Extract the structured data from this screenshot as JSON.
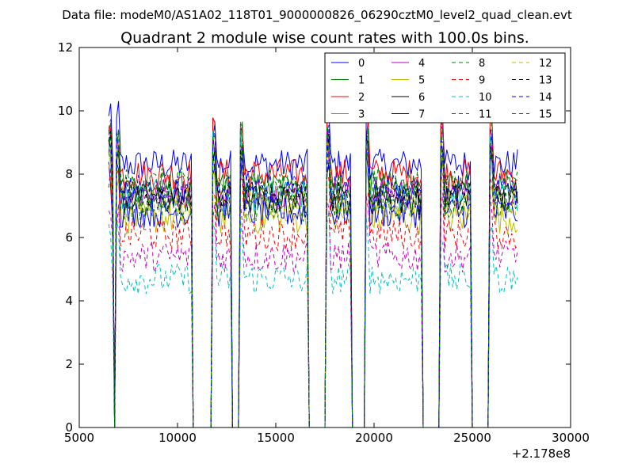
{
  "header": {
    "data_file": "Data file: modeM0/AS1A02_118T01_9000000826_06290cztM0_level2_quad_clean.evt"
  },
  "chart_data": {
    "type": "line",
    "title": "Quadrant 2 module wise count rates with 100.0s bins.",
    "xlabel": "",
    "ylabel": "",
    "x_offset_label": "+2.178e8",
    "xlim": [
      5000,
      30000
    ],
    "ylim": [
      0,
      12
    ],
    "x_ticks": [
      5000,
      10000,
      15000,
      20000,
      25000,
      30000
    ],
    "y_ticks": [
      0,
      2,
      4,
      6,
      8,
      10,
      12
    ],
    "grid": false,
    "legend_position": "top-right",
    "legend_columns": 4,
    "active_segments": [
      [
        6500,
        6700
      ],
      [
        6900,
        10700
      ],
      [
        11800,
        12700
      ],
      [
        13200,
        16600
      ],
      [
        17600,
        18800
      ],
      [
        19600,
        22400
      ],
      [
        23400,
        24900
      ],
      [
        25900,
        27300
      ]
    ],
    "gaps": [
      [
        6700,
        6900
      ],
      [
        10800,
        11700
      ],
      [
        12800,
        13100
      ],
      [
        16700,
        17500
      ],
      [
        18900,
        19500
      ],
      [
        22500,
        23300
      ],
      [
        25000,
        25800
      ]
    ],
    "series": [
      {
        "name": "0",
        "color": "#0000ff",
        "dash": "solid",
        "level": 8.3
      },
      {
        "name": "1",
        "color": "#008000",
        "dash": "solid",
        "level": 7.6
      },
      {
        "name": "2",
        "color": "#ff0000",
        "dash": "solid",
        "level": 8.0
      },
      {
        "name": "3",
        "color": "#00bfbf",
        "dash": "solid",
        "level": 7.3
      },
      {
        "name": "4",
        "color": "#bf00bf",
        "dash": "solid",
        "level": 7.4
      },
      {
        "name": "5",
        "color": "#bfbf00",
        "dash": "solid",
        "level": 6.6
      },
      {
        "name": "6",
        "color": "#000000",
        "dash": "solid",
        "level": 7.2
      },
      {
        "name": "7",
        "color": "#0000ff",
        "dash": "solid",
        "level": 6.8
      },
      {
        "name": "8",
        "color": "#008000",
        "dash": "dashed",
        "level": 7.7
      },
      {
        "name": "9",
        "color": "#ff0000",
        "dash": "dashed",
        "level": 6.1
      },
      {
        "name": "10",
        "color": "#00bfbf",
        "dash": "dashed",
        "level": 4.7
      },
      {
        "name": "11",
        "color": "#bf00bf",
        "dash": "dashed",
        "level": 5.4
      },
      {
        "name": "12",
        "color": "#bfbf00",
        "dash": "dashed",
        "level": 7.1
      },
      {
        "name": "13",
        "color": "#000000",
        "dash": "dashed",
        "level": 7.3
      },
      {
        "name": "14",
        "color": "#0000ff",
        "dash": "dashed",
        "level": 7.5
      },
      {
        "name": "15",
        "color": "#008000",
        "dash": "dashed",
        "level": 7.0
      }
    ]
  }
}
